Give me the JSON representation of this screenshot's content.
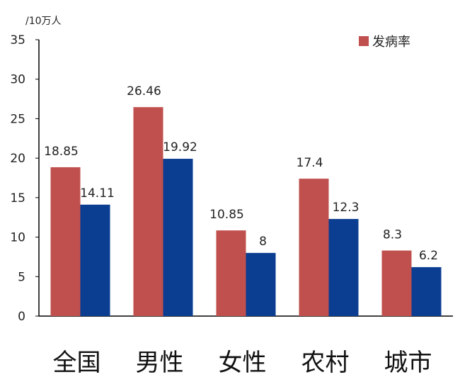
{
  "chart_data": {
    "type": "bar",
    "title": "",
    "xlabel": "",
    "ylabel": "/10万人",
    "categories": [
      "全国",
      "男性",
      "女性",
      "农村",
      "城市"
    ],
    "series": [
      {
        "name": "发病率",
        "color": "#c0504d",
        "values": [
          18.85,
          26.46,
          10.85,
          17.4,
          8.3
        ]
      },
      {
        "color": "#0b3d91",
        "values": [
          14.11,
          19.92,
          8,
          12.3,
          6.2
        ]
      }
    ],
    "value_labels": [
      [
        "18.85",
        "26.46",
        "10.85",
        "17.4",
        "8.3"
      ],
      [
        "14.11",
        "19.92",
        "8",
        "12.3",
        "6.2"
      ]
    ],
    "ylim": [
      0,
      35
    ],
    "yticks": [
      0,
      5,
      10,
      15,
      20,
      25,
      30,
      35
    ],
    "grid": false,
    "legend": {
      "position": "top-right",
      "entries": [
        "发病率"
      ]
    }
  }
}
